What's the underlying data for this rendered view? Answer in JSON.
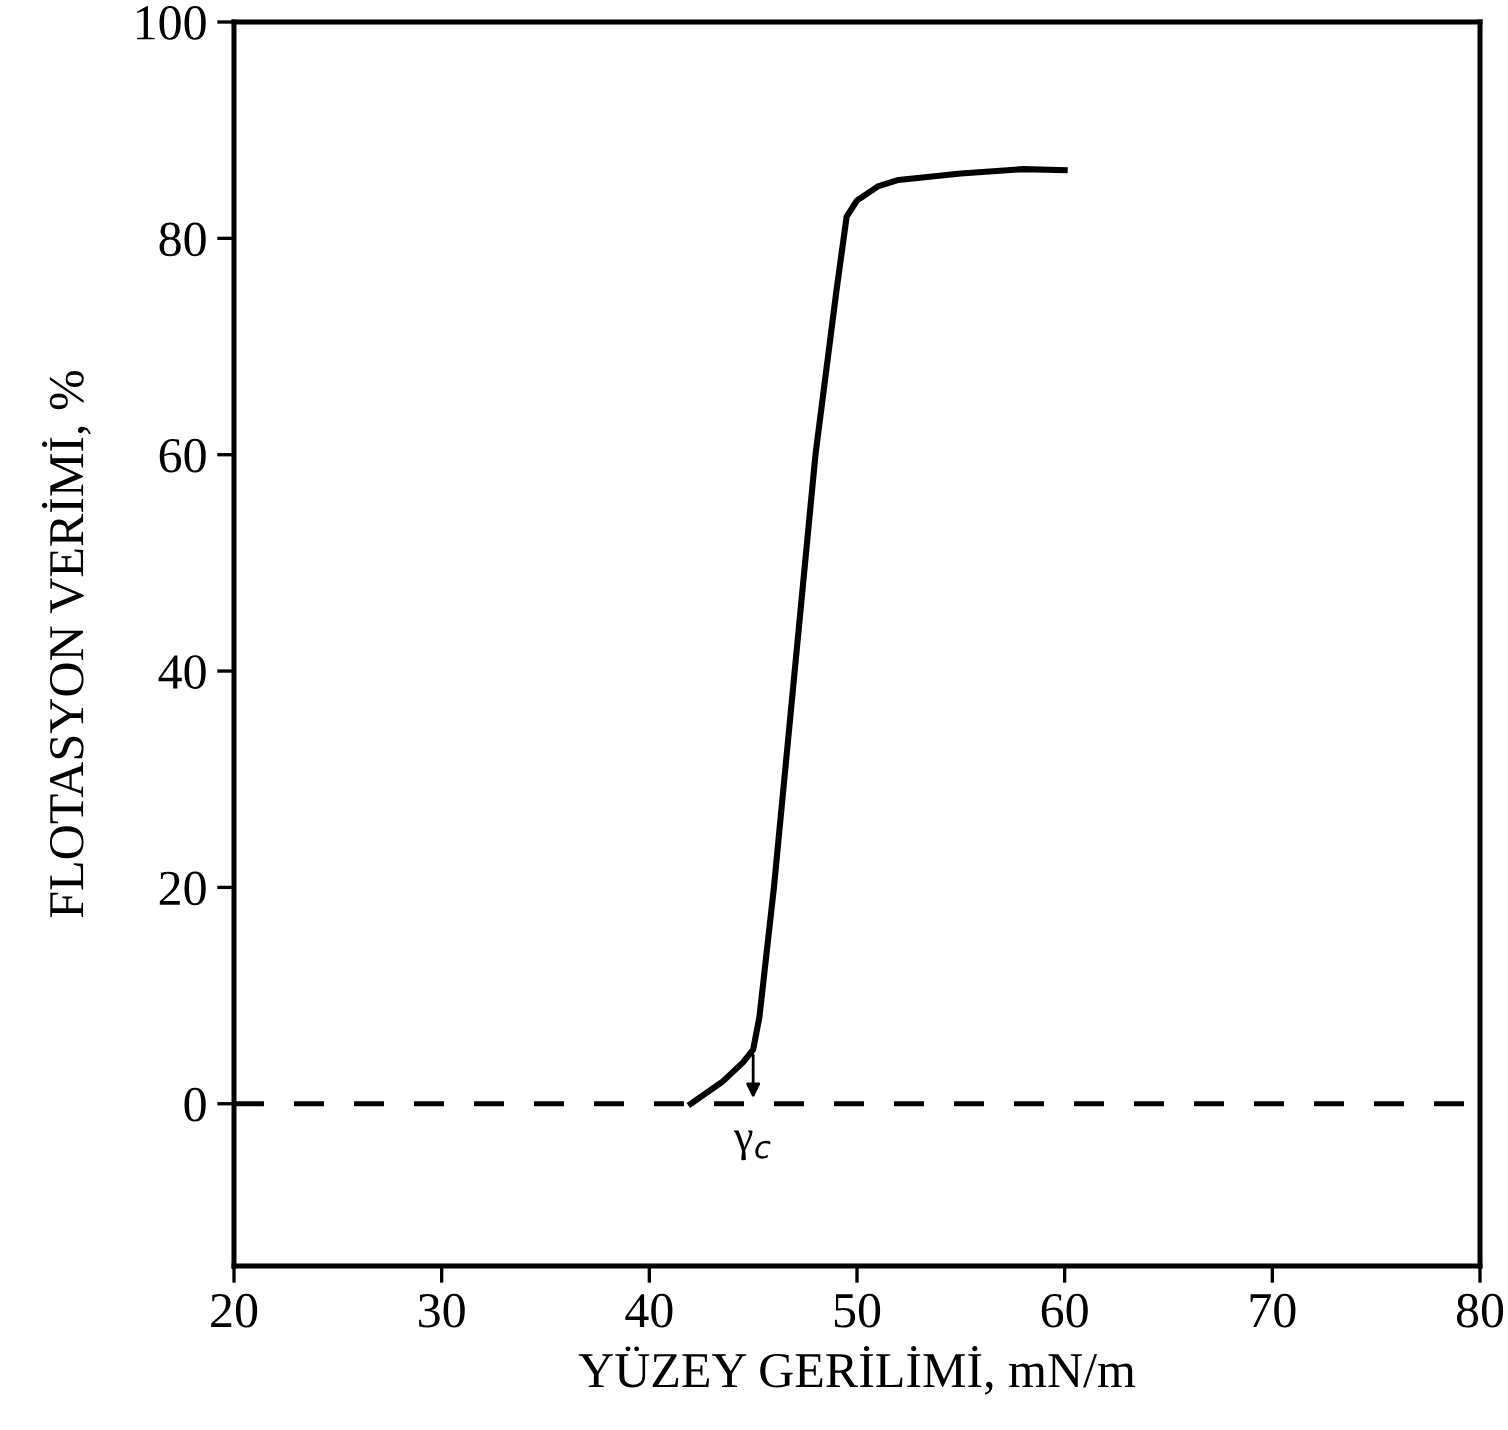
{
  "chart_data": {
    "type": "line",
    "xlabel": "YÜZEY GERİLİMİ, mN/m",
    "ylabel": "FLOTASYON VERİMİ, %",
    "x": [
      42,
      43.5,
      44.5,
      45,
      45.3,
      46,
      47,
      48,
      49,
      49.5,
      50,
      51,
      52,
      55,
      58,
      60
    ],
    "series": [
      {
        "color": "#000000",
        "values": [
          0,
          2,
          3.8,
          5,
          8,
          20,
          40,
          60,
          75,
          82,
          83.5,
          84.8,
          85.4,
          86,
          86.4,
          86.3
        ]
      }
    ],
    "xlim": [
      20,
      80
    ],
    "xticks": [
      20,
      30,
      40,
      50,
      60,
      70,
      80
    ],
    "ylim": [
      -15,
      100
    ],
    "yticks": [
      0,
      20,
      40,
      60,
      80,
      100
    ],
    "ref_lines": [
      {
        "axis": "y",
        "value": 0,
        "color": "#000000",
        "line_style": "dashed"
      }
    ],
    "annotations": [
      {
        "text": "γ$_{c}$",
        "x": 45,
        "y": 0
      }
    ],
    "grid": false,
    "legend": false,
    "marker": "none",
    "line_style": "solid"
  }
}
